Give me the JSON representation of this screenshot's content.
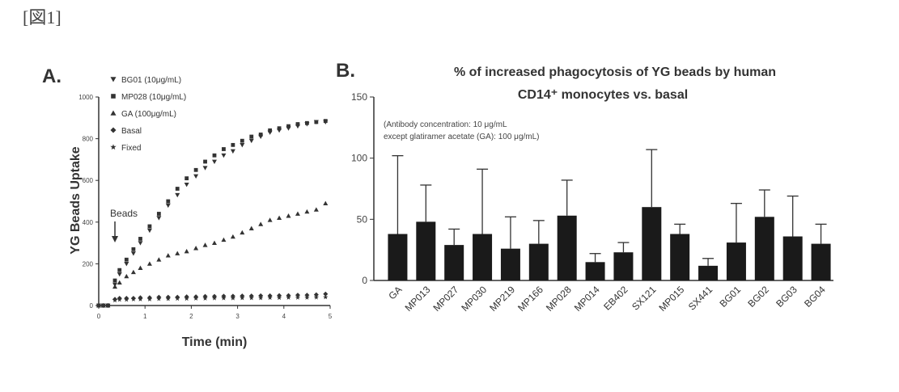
{
  "figure_label": "[図1]",
  "chart_data": [
    {
      "type": "scatter",
      "panel_label": "A.",
      "title": "",
      "xlabel": "Time (min)",
      "ylabel": "YG Beads Uptake",
      "xlim": [
        0,
        5
      ],
      "ylim": [
        0,
        1000
      ],
      "xticks": [
        "0",
        "1",
        "2",
        "3",
        "4",
        "5"
      ],
      "yticks": [
        "0",
        "200",
        "400",
        "600",
        "800",
        "1000"
      ],
      "legend_position": "top-left",
      "annotation": "Beads",
      "annotation_x": 0.35,
      "series": [
        {
          "name": "BG01 (10μg/mL)",
          "marker": "triangle-down",
          "x": [
            0,
            0.1,
            0.2,
            0.35,
            0.45,
            0.6,
            0.75,
            0.9,
            1.1,
            1.3,
            1.5,
            1.7,
            1.9,
            2.1,
            2.3,
            2.5,
            2.7,
            2.9,
            3.1,
            3.3,
            3.5,
            3.7,
            3.9,
            4.1,
            4.3,
            4.5,
            4.7,
            4.9
          ],
          "y": [
            0,
            0,
            0,
            100,
            150,
            200,
            250,
            300,
            360,
            420,
            480,
            530,
            580,
            620,
            660,
            690,
            720,
            740,
            770,
            790,
            810,
            830,
            840,
            850,
            860,
            870,
            880,
            880
          ]
        },
        {
          "name": "MP028 (10μg/mL)",
          "marker": "square",
          "x": [
            0,
            0.1,
            0.2,
            0.35,
            0.45,
            0.6,
            0.75,
            0.9,
            1.1,
            1.3,
            1.5,
            1.7,
            1.9,
            2.1,
            2.3,
            2.5,
            2.7,
            2.9,
            3.1,
            3.3,
            3.5,
            3.7,
            3.9,
            4.1,
            4.3,
            4.5,
            4.7,
            4.9
          ],
          "y": [
            0,
            0,
            0,
            120,
            170,
            220,
            270,
            320,
            380,
            440,
            500,
            560,
            610,
            650,
            690,
            720,
            750,
            770,
            790,
            810,
            820,
            840,
            850,
            860,
            870,
            875,
            880,
            885
          ]
        },
        {
          "name": "GA (100μg/mL)",
          "marker": "triangle",
          "x": [
            0,
            0.1,
            0.2,
            0.35,
            0.45,
            0.6,
            0.75,
            0.9,
            1.1,
            1.3,
            1.5,
            1.7,
            1.9,
            2.1,
            2.3,
            2.5,
            2.7,
            2.9,
            3.1,
            3.3,
            3.5,
            3.7,
            3.9,
            4.1,
            4.3,
            4.5,
            4.7,
            4.9
          ],
          "y": [
            0,
            0,
            0,
            90,
            110,
            140,
            160,
            180,
            200,
            220,
            240,
            250,
            260,
            275,
            290,
            300,
            315,
            330,
            350,
            370,
            390,
            410,
            420,
            430,
            440,
            450,
            460,
            490
          ]
        },
        {
          "name": "Basal",
          "marker": "diamond",
          "x": [
            0,
            0.1,
            0.2,
            0.35,
            0.45,
            0.6,
            0.75,
            0.9,
            1.1,
            1.3,
            1.5,
            1.7,
            1.9,
            2.1,
            2.3,
            2.5,
            2.7,
            2.9,
            3.1,
            3.3,
            3.5,
            3.7,
            3.9,
            4.1,
            4.3,
            4.5,
            4.7,
            4.9
          ],
          "y": [
            0,
            0,
            0,
            30,
            35,
            35,
            35,
            38,
            38,
            40,
            40,
            40,
            42,
            42,
            44,
            44,
            45,
            45,
            46,
            46,
            47,
            47,
            48,
            48,
            50,
            50,
            52,
            55
          ]
        },
        {
          "name": "Fixed",
          "marker": "star",
          "x": [
            0,
            0.1,
            0.2,
            0.35,
            0.45,
            0.6,
            0.75,
            0.9,
            1.1,
            1.3,
            1.5,
            1.7,
            1.9,
            2.1,
            2.3,
            2.5,
            2.7,
            2.9,
            3.1,
            3.3,
            3.5,
            3.7,
            3.9,
            4.1,
            4.3,
            4.5,
            4.7,
            4.9
          ],
          "y": [
            0,
            0,
            0,
            25,
            28,
            28,
            30,
            30,
            30,
            32,
            32,
            33,
            33,
            34,
            34,
            35,
            35,
            35,
            36,
            36,
            36,
            37,
            37,
            38,
            38,
            38,
            39,
            40
          ]
        }
      ]
    },
    {
      "type": "bar",
      "panel_label": "B.",
      "title": "% of increased phagocytosis of YG beads by human CD14⁺ monocytes vs. basal",
      "title_line1": "% of increased phagocytosis of YG beads by human",
      "title_line2": "CD14⁺ monocytes vs. basal",
      "annotation_line1": "(Antibody concentration: 10 μg/mL",
      "annotation_line2": "except glatiramer acetate (GA): 100 μg/mL)",
      "xlabel": "",
      "ylabel": "",
      "ylim": [
        0,
        150
      ],
      "yticks": [
        "0",
        "50",
        "100",
        "150"
      ],
      "categories": [
        "GA",
        "MP013",
        "MP027",
        "MP030",
        "MP219",
        "MP166",
        "MP028",
        "MP014",
        "EB402",
        "SX121",
        "MP015",
        "SX441",
        "BG01",
        "BG02",
        "BG03",
        "BG04"
      ],
      "values": [
        38,
        48,
        29,
        38,
        26,
        30,
        53,
        15,
        23,
        60,
        38,
        12,
        31,
        52,
        36,
        30
      ],
      "errors": [
        64,
        30,
        13,
        53,
        26,
        19,
        29,
        7,
        8,
        47,
        8,
        6,
        32,
        22,
        33,
        16
      ]
    }
  ]
}
